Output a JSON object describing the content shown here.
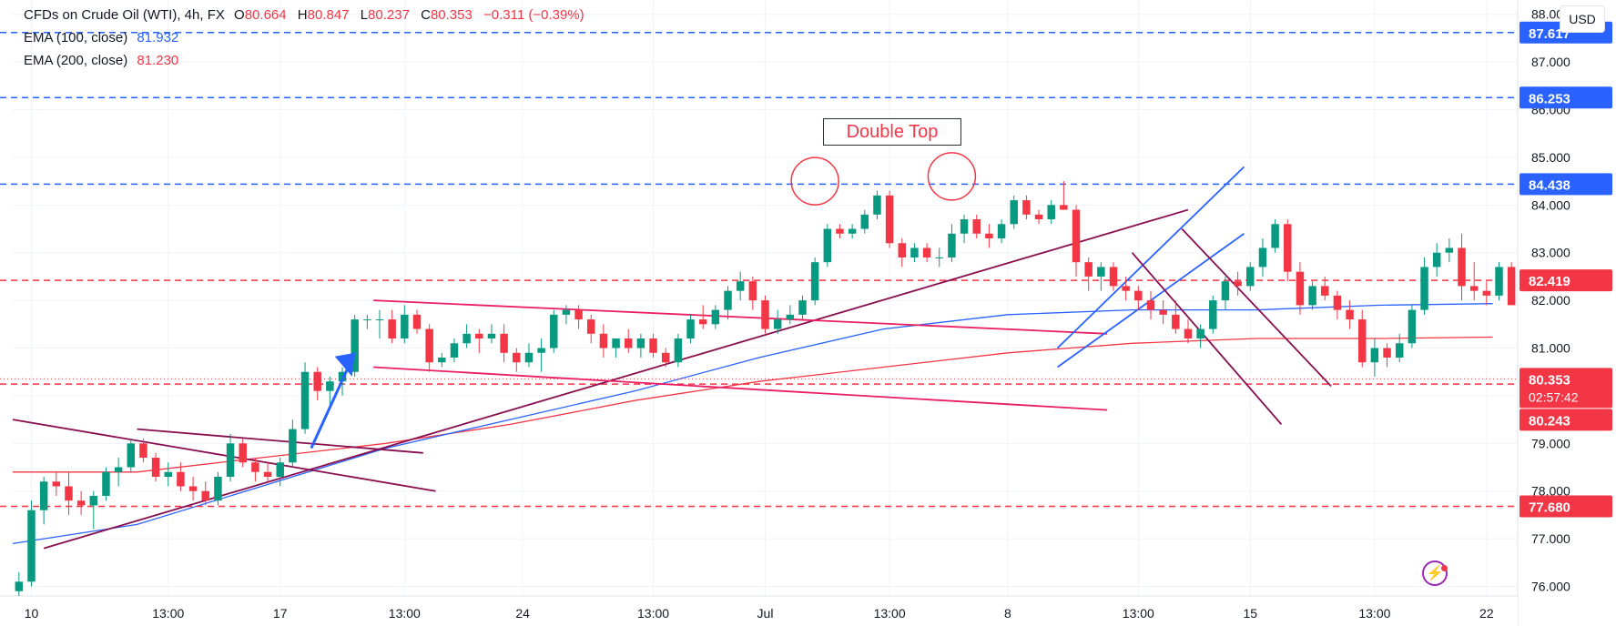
{
  "header": {
    "symbol": "CFDs on Crude Oil (WTI), 4h, FX",
    "open_label": "O",
    "open": "80.664",
    "high_label": "H",
    "high": "80.847",
    "low_label": "L",
    "low": "80.237",
    "close_label": "C",
    "close": "80.353",
    "change": "−0.311 (−0.39%)",
    "ema100_label": "EMA (100, close)",
    "ema100_value": "81.932",
    "ema200_label": "EMA (200, close)",
    "ema200_value": "81.230"
  },
  "currency": "USD",
  "annotation": "Double Top",
  "countdown": "02:57:42",
  "colors": {
    "up": "#089981",
    "down": "#f23645",
    "ema100": "#2962ff",
    "ema200": "#f23645",
    "hline_blue": "#2962ff",
    "hline_red": "#f23645",
    "trendline": "#880e4f",
    "channel_pink": "#e91e63",
    "channel_blue": "#2962ff",
    "arrow": "#2962ff",
    "circle": "#f23645"
  },
  "chart_data": {
    "type": "candlestick",
    "y_axis": {
      "range": [
        75.8,
        88.3
      ],
      "ticks": [
        "76.000",
        "77.000",
        "78.000",
        "79.000",
        "80.000",
        "81.000",
        "82.000",
        "83.000",
        "84.000",
        "85.000",
        "86.000",
        "87.000",
        "88.000"
      ]
    },
    "x_axis": {
      "range": [
        0,
        121
      ],
      "labels": [
        {
          "x": 1.5,
          "text": "10"
        },
        {
          "x": 12.5,
          "text": "13:00"
        },
        {
          "x": 21.5,
          "text": "17"
        },
        {
          "x": 31.5,
          "text": "13:00"
        },
        {
          "x": 41,
          "text": "24"
        },
        {
          "x": 51.5,
          "text": "13:00"
        },
        {
          "x": 60.5,
          "text": "Jul"
        },
        {
          "x": 70.5,
          "text": "13:00"
        },
        {
          "x": 80,
          "text": "8"
        },
        {
          "x": 90.5,
          "text": "13:00"
        },
        {
          "x": 99.5,
          "text": "15"
        },
        {
          "x": 109.5,
          "text": "13:00"
        },
        {
          "x": 118.5,
          "text": "22"
        }
      ]
    },
    "candles": [
      [
        75.9,
        76.3,
        75.8,
        76.1
      ],
      [
        76.1,
        77.8,
        76.0,
        77.6
      ],
      [
        77.6,
        78.3,
        77.3,
        78.2
      ],
      [
        78.2,
        78.4,
        77.9,
        78.1
      ],
      [
        78.1,
        78.4,
        77.5,
        77.8
      ],
      [
        77.8,
        78.0,
        77.5,
        77.7
      ],
      [
        77.7,
        78.0,
        77.2,
        77.9
      ],
      [
        77.9,
        78.5,
        77.8,
        78.4
      ],
      [
        78.4,
        78.7,
        78.1,
        78.5
      ],
      [
        78.5,
        79.1,
        78.4,
        79.0
      ],
      [
        79.0,
        79.1,
        78.6,
        78.7
      ],
      [
        78.7,
        78.8,
        78.2,
        78.3
      ],
      [
        78.3,
        78.6,
        78.1,
        78.4
      ],
      [
        78.4,
        78.6,
        78.0,
        78.1
      ],
      [
        78.1,
        78.3,
        77.8,
        78.0
      ],
      [
        78.0,
        78.2,
        77.7,
        77.8
      ],
      [
        77.8,
        78.4,
        77.7,
        78.3
      ],
      [
        78.3,
        79.2,
        78.2,
        79.0
      ],
      [
        79.0,
        79.1,
        78.5,
        78.6
      ],
      [
        78.6,
        78.7,
        78.2,
        78.4
      ],
      [
        78.4,
        78.6,
        78.2,
        78.3
      ],
      [
        78.3,
        78.7,
        78.1,
        78.6
      ],
      [
        78.6,
        79.5,
        78.5,
        79.3
      ],
      [
        79.3,
        80.7,
        79.2,
        80.5
      ],
      [
        80.5,
        80.6,
        79.9,
        80.1
      ],
      [
        80.1,
        80.4,
        79.8,
        80.3
      ],
      [
        80.3,
        80.6,
        80.0,
        80.5
      ],
      [
        80.5,
        81.7,
        80.4,
        81.6
      ],
      [
        81.6,
        81.7,
        81.4,
        81.6
      ],
      [
        81.6,
        81.8,
        81.2,
        81.6
      ],
      [
        81.6,
        81.8,
        81.1,
        81.2
      ],
      [
        81.2,
        81.9,
        81.1,
        81.7
      ],
      [
        81.7,
        81.8,
        81.3,
        81.4
      ],
      [
        81.4,
        81.5,
        80.5,
        80.7
      ],
      [
        80.7,
        80.9,
        80.6,
        80.8
      ],
      [
        80.8,
        81.2,
        80.7,
        81.1
      ],
      [
        81.1,
        81.5,
        81.0,
        81.3
      ],
      [
        81.3,
        81.4,
        80.9,
        81.2
      ],
      [
        81.2,
        81.5,
        81.1,
        81.3
      ],
      [
        81.3,
        81.5,
        80.7,
        80.9
      ],
      [
        80.9,
        81.0,
        80.5,
        80.7
      ],
      [
        80.7,
        81.1,
        80.6,
        80.9
      ],
      [
        80.9,
        81.2,
        80.5,
        81.0
      ],
      [
        81.0,
        81.8,
        80.9,
        81.7
      ],
      [
        81.7,
        81.9,
        81.5,
        81.8
      ],
      [
        81.8,
        81.9,
        81.4,
        81.6
      ],
      [
        81.6,
        81.7,
        81.1,
        81.3
      ],
      [
        81.3,
        81.5,
        80.8,
        81.0
      ],
      [
        81.0,
        81.2,
        80.8,
        81.2
      ],
      [
        81.2,
        81.4,
        80.9,
        81.0
      ],
      [
        81.0,
        81.3,
        80.8,
        81.2
      ],
      [
        81.2,
        81.3,
        80.8,
        80.9
      ],
      [
        80.9,
        81.0,
        80.6,
        80.7
      ],
      [
        80.7,
        81.3,
        80.6,
        81.2
      ],
      [
        81.2,
        81.7,
        81.1,
        81.6
      ],
      [
        81.6,
        81.9,
        81.4,
        81.5
      ],
      [
        81.5,
        81.9,
        81.4,
        81.8
      ],
      [
        81.8,
        82.3,
        81.6,
        82.2
      ],
      [
        82.2,
        82.6,
        82.0,
        82.4
      ],
      [
        82.4,
        82.5,
        81.8,
        82.0
      ],
      [
        82.0,
        82.1,
        81.3,
        81.4
      ],
      [
        81.4,
        81.8,
        81.3,
        81.6
      ],
      [
        81.6,
        81.9,
        81.5,
        81.7
      ],
      [
        81.7,
        82.1,
        81.6,
        82.0
      ],
      [
        82.0,
        82.9,
        81.9,
        82.8
      ],
      [
        82.8,
        83.6,
        82.7,
        83.5
      ],
      [
        83.5,
        83.6,
        83.3,
        83.4
      ],
      [
        83.4,
        83.6,
        83.3,
        83.5
      ],
      [
        83.5,
        83.9,
        83.4,
        83.8
      ],
      [
        83.8,
        84.3,
        83.7,
        84.2
      ],
      [
        84.2,
        84.3,
        83.1,
        83.2
      ],
      [
        83.2,
        83.3,
        82.7,
        82.9
      ],
      [
        82.9,
        83.2,
        82.8,
        83.1
      ],
      [
        83.1,
        83.2,
        82.8,
        82.9
      ],
      [
        82.9,
        83.1,
        82.7,
        82.9
      ],
      [
        82.9,
        83.6,
        82.8,
        83.4
      ],
      [
        83.4,
        83.8,
        83.2,
        83.7
      ],
      [
        83.7,
        83.8,
        83.3,
        83.4
      ],
      [
        83.4,
        83.6,
        83.1,
        83.3
      ],
      [
        83.3,
        83.7,
        83.2,
        83.6
      ],
      [
        83.6,
        84.2,
        83.5,
        84.1
      ],
      [
        84.1,
        84.2,
        83.7,
        83.8
      ],
      [
        83.8,
        83.9,
        83.6,
        83.7
      ],
      [
        83.7,
        84.1,
        83.6,
        84.0
      ],
      [
        84.0,
        84.5,
        83.9,
        83.9
      ],
      [
        83.9,
        84.0,
        82.5,
        82.8
      ],
      [
        82.8,
        82.9,
        82.2,
        82.5
      ],
      [
        82.5,
        82.8,
        82.2,
        82.7
      ],
      [
        82.7,
        82.8,
        82.2,
        82.3
      ],
      [
        82.3,
        82.5,
        82.0,
        82.2
      ],
      [
        82.2,
        82.3,
        81.8,
        82.0
      ],
      [
        82.0,
        82.2,
        81.6,
        81.8
      ],
      [
        81.8,
        82.0,
        81.5,
        81.7
      ],
      [
        81.7,
        82.0,
        81.3,
        81.4
      ],
      [
        81.4,
        81.6,
        81.1,
        81.2
      ],
      [
        81.2,
        81.5,
        81.0,
        81.4
      ],
      [
        81.4,
        82.1,
        81.3,
        82.0
      ],
      [
        82.0,
        82.5,
        81.8,
        82.4
      ],
      [
        82.4,
        82.6,
        82.1,
        82.3
      ],
      [
        82.3,
        82.8,
        82.2,
        82.7
      ],
      [
        82.7,
        83.3,
        82.5,
        83.1
      ],
      [
        83.1,
        83.7,
        83.0,
        83.6
      ],
      [
        83.6,
        83.7,
        82.4,
        82.6
      ],
      [
        82.6,
        82.8,
        81.7,
        81.9
      ],
      [
        81.9,
        82.4,
        81.8,
        82.3
      ],
      [
        82.3,
        82.5,
        82.0,
        82.1
      ],
      [
        82.1,
        82.2,
        81.6,
        81.8
      ],
      [
        81.8,
        82.0,
        81.4,
        81.6
      ],
      [
        81.6,
        81.8,
        80.6,
        80.7
      ],
      [
        80.7,
        81.2,
        80.4,
        81.0
      ],
      [
        81.0,
        81.1,
        80.6,
        80.8
      ],
      [
        80.8,
        81.3,
        80.7,
        81.1
      ],
      [
        81.1,
        81.9,
        81.0,
        81.8
      ],
      [
        81.8,
        82.9,
        81.7,
        82.7
      ],
      [
        82.7,
        83.2,
        82.5,
        83.0
      ],
      [
        83.0,
        83.3,
        82.8,
        83.1
      ],
      [
        83.1,
        83.4,
        82.0,
        82.3
      ],
      [
        82.3,
        82.8,
        82.0,
        82.2
      ],
      [
        82.2,
        82.4,
        81.9,
        82.1
      ],
      [
        82.1,
        82.8,
        82.0,
        82.7
      ],
      [
        82.7,
        82.8,
        81.9,
        81.9
      ],
      [
        80.664,
        80.847,
        80.237,
        80.353
      ]
    ],
    "ema100": [
      [
        0,
        76.9
      ],
      [
        10,
        77.3
      ],
      [
        20,
        78.1
      ],
      [
        30,
        78.9
      ],
      [
        40,
        79.5
      ],
      [
        50,
        80.1
      ],
      [
        60,
        80.8
      ],
      [
        70,
        81.4
      ],
      [
        80,
        81.7
      ],
      [
        90,
        81.8
      ],
      [
        100,
        81.8
      ],
      [
        110,
        81.9
      ],
      [
        119,
        81.932
      ]
    ],
    "ema200": [
      [
        0,
        78.4
      ],
      [
        10,
        78.4
      ],
      [
        20,
        78.7
      ],
      [
        30,
        79.0
      ],
      [
        40,
        79.4
      ],
      [
        50,
        79.9
      ],
      [
        60,
        80.3
      ],
      [
        70,
        80.6
      ],
      [
        80,
        80.9
      ],
      [
        90,
        81.1
      ],
      [
        100,
        81.2
      ],
      [
        110,
        81.2
      ],
      [
        119,
        81.23
      ]
    ],
    "horizontal_levels": [
      {
        "value": 87.617,
        "label": "87.617",
        "style": "dashed",
        "color": "#2962ff"
      },
      {
        "value": 86.253,
        "label": "86.253",
        "style": "dashed",
        "color": "#2962ff"
      },
      {
        "value": 84.438,
        "label": "84.438",
        "style": "dashed",
        "color": "#2962ff"
      },
      {
        "value": 82.419,
        "label": "82.419",
        "style": "dashed",
        "color": "#f23645"
      },
      {
        "value": 80.243,
        "label": "80.243",
        "style": "dashed",
        "color": "#f23645"
      },
      {
        "value": 77.68,
        "label": "77.680",
        "style": "dashed",
        "color": "#f23645"
      }
    ],
    "last_price": {
      "value": 80.353,
      "label": "80.353"
    },
    "trend_lines": [
      {
        "x1": 0,
        "y1": 79.5,
        "x2": 34,
        "y2": 78.0,
        "color": "#880e4f"
      },
      {
        "x1": 10,
        "y1": 79.3,
        "x2": 33,
        "y2": 78.8,
        "color": "#880e4f"
      },
      {
        "x1": 2.5,
        "y1": 76.8,
        "x2": 94.5,
        "y2": 83.9,
        "color": "#880e4f"
      },
      {
        "x1": 29,
        "y1": 82.0,
        "x2": 88,
        "y2": 81.3,
        "color": "#e91e63"
      },
      {
        "x1": 29,
        "y1": 80.6,
        "x2": 88,
        "y2": 79.7,
        "color": "#e91e63"
      },
      {
        "x1": 84,
        "y1": 81.0,
        "x2": 99,
        "y2": 84.8,
        "color": "#2962ff"
      },
      {
        "x1": 84,
        "y1": 80.6,
        "x2": 99,
        "y2": 83.4,
        "color": "#2962ff"
      },
      {
        "x1": 90,
        "y1": 83.0,
        "x2": 102,
        "y2": 79.4,
        "color": "#880e4f"
      },
      {
        "x1": 94,
        "y1": 83.5,
        "x2": 106,
        "y2": 80.2,
        "color": "#880e4f"
      }
    ],
    "arrow": {
      "x1": 24,
      "y1": 78.9,
      "x2": 27.5,
      "y2": 80.9
    },
    "circles": [
      {
        "x": 64.5,
        "y": 84.5
      },
      {
        "x": 75.5,
        "y": 84.6
      }
    ]
  }
}
